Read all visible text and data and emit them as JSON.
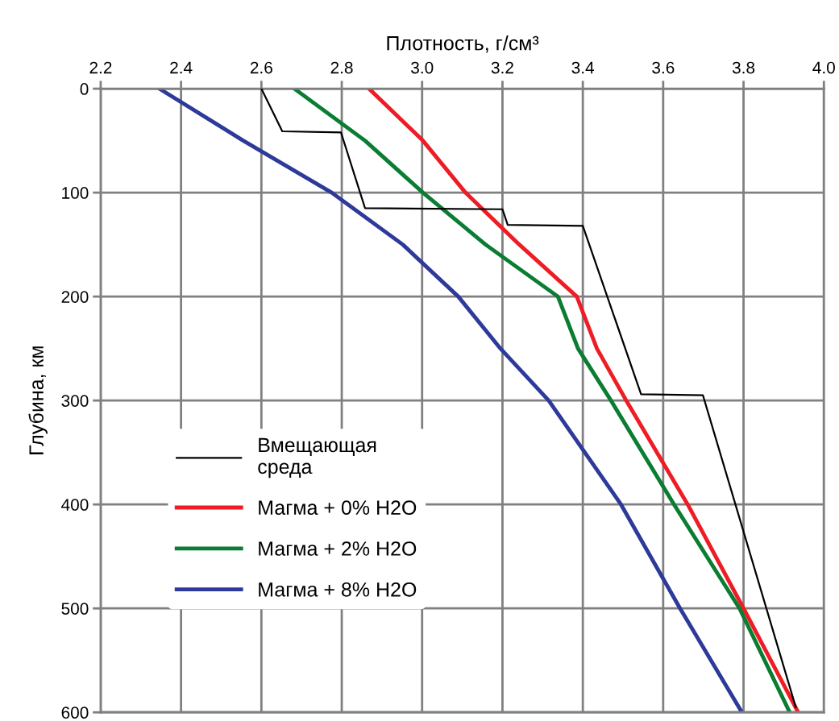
{
  "chart_data": {
    "type": "line",
    "xlabel": "Плотность, г/см³",
    "ylabel": "Глубина, км",
    "xlim": [
      2.2,
      4.0
    ],
    "xticks": [
      {
        "value": 2.2,
        "label": "2.2"
      },
      {
        "value": 2.4,
        "label": "2.4"
      },
      {
        "value": 2.6,
        "label": "2.6"
      },
      {
        "value": 2.8,
        "label": "2.8"
      },
      {
        "value": 3.0,
        "label": "3.0"
      },
      {
        "value": 3.2,
        "label": "3.2"
      },
      {
        "value": 3.4,
        "label": "3.4"
      },
      {
        "value": 3.6,
        "label": "3.6"
      },
      {
        "value": 3.8,
        "label": "3.8"
      },
      {
        "value": 4.0,
        "label": "4.0"
      }
    ],
    "ylim": [
      600,
      0
    ],
    "yticks": [
      0,
      100,
      200,
      300,
      400,
      500,
      600
    ],
    "grid": true,
    "legend": "left",
    "marker": "none",
    "line_style": "solid",
    "series": [
      {
        "name": "Вмещающая\nсреда",
        "color": "#000000",
        "x": [
          2.6,
          2.652,
          2.798,
          2.858,
          3.2,
          3.213,
          3.4,
          3.545,
          3.699,
          3.93
        ],
        "values": [
          0,
          41,
          42,
          115,
          116,
          131,
          132,
          294,
          295,
          595
        ]
      },
      {
        "name": "Магма + 0% H2O",
        "color": "#ee1c25",
        "x": [
          2.868,
          3.002,
          3.108,
          3.242,
          3.385,
          3.435,
          3.508,
          3.661,
          3.8,
          3.936
        ],
        "values": [
          0,
          50,
          100,
          150,
          200,
          250,
          300,
          400,
          500,
          600
        ]
      },
      {
        "name": "Магма + 2% H2O",
        "color": "#0a7d32",
        "x": [
          2.682,
          2.858,
          3.002,
          3.158,
          3.338,
          3.388,
          3.47,
          3.627,
          3.79,
          3.915
        ],
        "values": [
          0,
          50,
          100,
          150,
          200,
          250,
          300,
          400,
          500,
          600
        ]
      },
      {
        "name": "Магма + 8% H2O",
        "color": "#2e3a9a",
        "x": [
          2.346,
          2.555,
          2.775,
          2.952,
          3.09,
          3.195,
          3.315,
          3.495,
          3.642,
          3.796
        ],
        "values": [
          0,
          50,
          100,
          150,
          200,
          250,
          300,
          400,
          500,
          600
        ]
      }
    ]
  }
}
